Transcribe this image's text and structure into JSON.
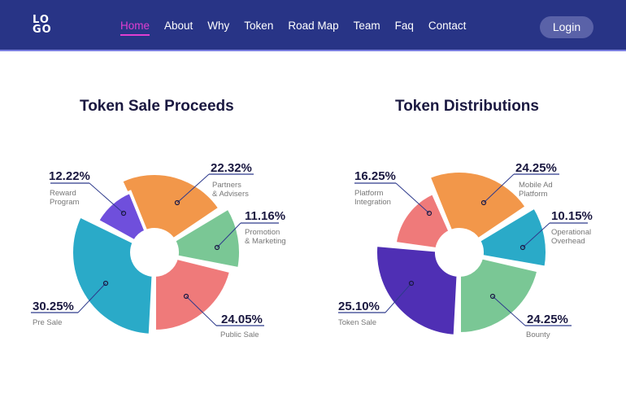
{
  "nav": {
    "logo": "LOGO",
    "items": [
      {
        "label": "Home",
        "active": true
      },
      {
        "label": "About"
      },
      {
        "label": "Why"
      },
      {
        "label": "Token"
      },
      {
        "label": "Road Map"
      },
      {
        "label": "Team"
      },
      {
        "label": "Faq"
      },
      {
        "label": "Contact"
      }
    ],
    "login": "Login",
    "active_color": "#e13ed1",
    "bg_color": "#283486"
  },
  "chart_data": [
    {
      "type": "pie",
      "title": "Token Sale Proceeds",
      "slices": [
        {
          "value_label": "22.32%",
          "value": 22.32,
          "label": [
            "Partners",
            "& Advisers"
          ],
          "color": "#f2974a"
        },
        {
          "value_label": "11.16%",
          "value": 11.16,
          "label": [
            "Promotion",
            "& Marketing"
          ],
          "color": "#7ac795"
        },
        {
          "value_label": "24.05%",
          "value": 24.05,
          "label": [
            "Public Sale"
          ],
          "color": "#ef7a7a"
        },
        {
          "value_label": "30.25%",
          "value": 30.25,
          "label": [
            "Pre Sale"
          ],
          "color": "#2aaac8"
        },
        {
          "value_label": "12.22%",
          "value": 12.22,
          "label": [
            "Reward",
            "Program"
          ],
          "color": "#6f4fdc"
        }
      ]
    },
    {
      "type": "pie",
      "title": "Token Distributions",
      "slices": [
        {
          "value_label": "24.25%",
          "value": 24.25,
          "label": [
            "Mobile Ad",
            "Platform"
          ],
          "color": "#f2974a"
        },
        {
          "value_label": "10.15%",
          "value": 10.15,
          "label": [
            "Operational",
            "Overhead"
          ],
          "color": "#2aaac8"
        },
        {
          "value_label": "24.25%",
          "value": 24.25,
          "label": [
            "Bounty"
          ],
          "color": "#7ac795"
        },
        {
          "value_label": "25.10%",
          "value": 25.1,
          "label": [
            "Token Sale"
          ],
          "color": "#4f2fb4"
        },
        {
          "value_label": "16.25%",
          "value": 16.25,
          "label": [
            "Platform",
            "Integration"
          ],
          "color": "#ef7a7a"
        }
      ]
    }
  ]
}
